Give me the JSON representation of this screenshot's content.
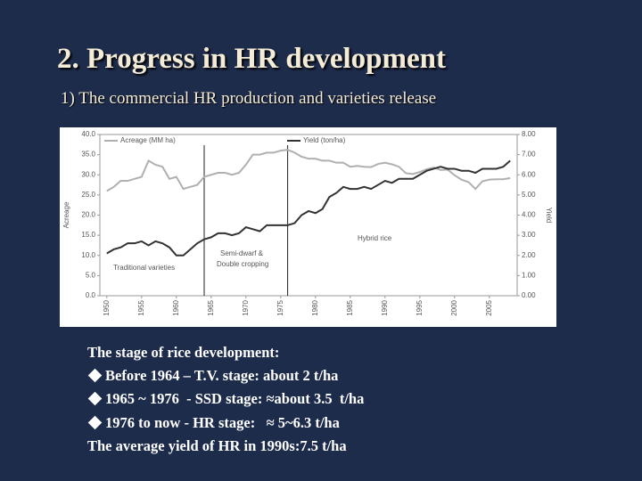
{
  "slide": {
    "title": "2. Progress in HR development",
    "subtitle": "1) The commercial HR production and varieties release",
    "text": {
      "heading": "The stage of rice development:",
      "bullets": [
        "Before 1964 – T.V. stage: about 2 t/ha",
        "1965 ~ 1976  - SSD stage: ≈about 3.5  t/ha",
        "1976 to now - HR stage:   ≈ 5~6.3 t/ha"
      ],
      "footer": "The average yield of HR in 1990s:7.5 t/ha"
    }
  },
  "chart_data": {
    "type": "line",
    "x": [
      1950,
      1951,
      1952,
      1953,
      1954,
      1955,
      1956,
      1957,
      1958,
      1959,
      1960,
      1961,
      1962,
      1963,
      1964,
      1965,
      1966,
      1967,
      1968,
      1969,
      1970,
      1971,
      1972,
      1973,
      1974,
      1975,
      1976,
      1977,
      1978,
      1979,
      1980,
      1981,
      1982,
      1983,
      1984,
      1985,
      1986,
      1987,
      1988,
      1989,
      1990,
      1991,
      1992,
      1993,
      1994,
      1995,
      1996,
      1997,
      1998,
      1999,
      2000,
      2001,
      2002,
      2003,
      2004,
      2005,
      2006,
      2007,
      2008
    ],
    "series": [
      {
        "name": "Acreage (MM ha)",
        "color": "#b0b0b0",
        "values": [
          26,
          27,
          28.5,
          28.5,
          29,
          29.5,
          33.5,
          32.5,
          32,
          29,
          29.5,
          26.5,
          27,
          27.5,
          29.5,
          30,
          30.5,
          30.5,
          30,
          30.5,
          32.5,
          35,
          35,
          35.5,
          35.5,
          36,
          36.2,
          35.5,
          34.5,
          34,
          34,
          33.5,
          33.5,
          33,
          33,
          32,
          32.2,
          32,
          31.9,
          32.7,
          33,
          32.6,
          32,
          30.4,
          30.2,
          30.7,
          31.4,
          31.8,
          31.2,
          31.3,
          29.9,
          28.8,
          28.2,
          26.5,
          28.4,
          28.8,
          28.9,
          28.9,
          29.2
        ]
      },
      {
        "name": "Yield (ton/ha)",
        "color": "#333333",
        "axis": "y2",
        "values": [
          2.1,
          2.3,
          2.4,
          2.6,
          2.6,
          2.7,
          2.5,
          2.7,
          2.6,
          2.4,
          2.0,
          2.0,
          2.3,
          2.6,
          2.8,
          2.9,
          3.1,
          3.1,
          3.0,
          3.1,
          3.4,
          3.3,
          3.2,
          3.5,
          3.5,
          3.5,
          3.5,
          3.6,
          4.0,
          4.2,
          4.1,
          4.3,
          4.9,
          5.1,
          5.4,
          5.3,
          5.3,
          5.4,
          5.3,
          5.5,
          5.7,
          5.6,
          5.8,
          5.8,
          5.8,
          6.0,
          6.2,
          6.3,
          6.4,
          6.3,
          6.3,
          6.2,
          6.2,
          6.1,
          6.3,
          6.3,
          6.3,
          6.4,
          6.7
        ]
      }
    ],
    "xlim": [
      1949,
      2009
    ],
    "xticks": [
      1950,
      1955,
      1960,
      1965,
      1970,
      1975,
      1980,
      1985,
      1990,
      1995,
      2000,
      2005
    ],
    "ylim": [
      0,
      40
    ],
    "yticks": [
      {
        "value": 0,
        "label": "0.0"
      },
      {
        "value": 5,
        "label": "5.0"
      },
      {
        "value": 10,
        "label": "10.0"
      },
      {
        "value": 15,
        "label": "15.0"
      },
      {
        "value": 20,
        "label": "20.0"
      },
      {
        "value": 25,
        "label": "25.0"
      },
      {
        "value": 30,
        "label": "30.0"
      },
      {
        "value": 35,
        "label": "35.0"
      },
      {
        "value": 40,
        "label": "40.0"
      }
    ],
    "y2lim": [
      0,
      8
    ],
    "y2ticks": [
      {
        "value": 0,
        "label": "0.00"
      },
      {
        "value": 1,
        "label": "1.00"
      },
      {
        "value": 2,
        "label": "2.00"
      },
      {
        "value": 3,
        "label": "3.00"
      },
      {
        "value": 4,
        "label": "4.00"
      },
      {
        "value": 5,
        "label": "5.00"
      },
      {
        "value": 6,
        "label": "6.00"
      },
      {
        "value": 7,
        "label": "7.00"
      },
      {
        "value": 8,
        "label": "8.00"
      }
    ],
    "ylabel": "Acreage",
    "y2label": "Yield",
    "stage_lines": [
      1964,
      1976
    ],
    "annotations": [
      "Traditional varieties",
      "Semi-dwarf &",
      "Double cropping",
      "Hybrid rice"
    ]
  }
}
